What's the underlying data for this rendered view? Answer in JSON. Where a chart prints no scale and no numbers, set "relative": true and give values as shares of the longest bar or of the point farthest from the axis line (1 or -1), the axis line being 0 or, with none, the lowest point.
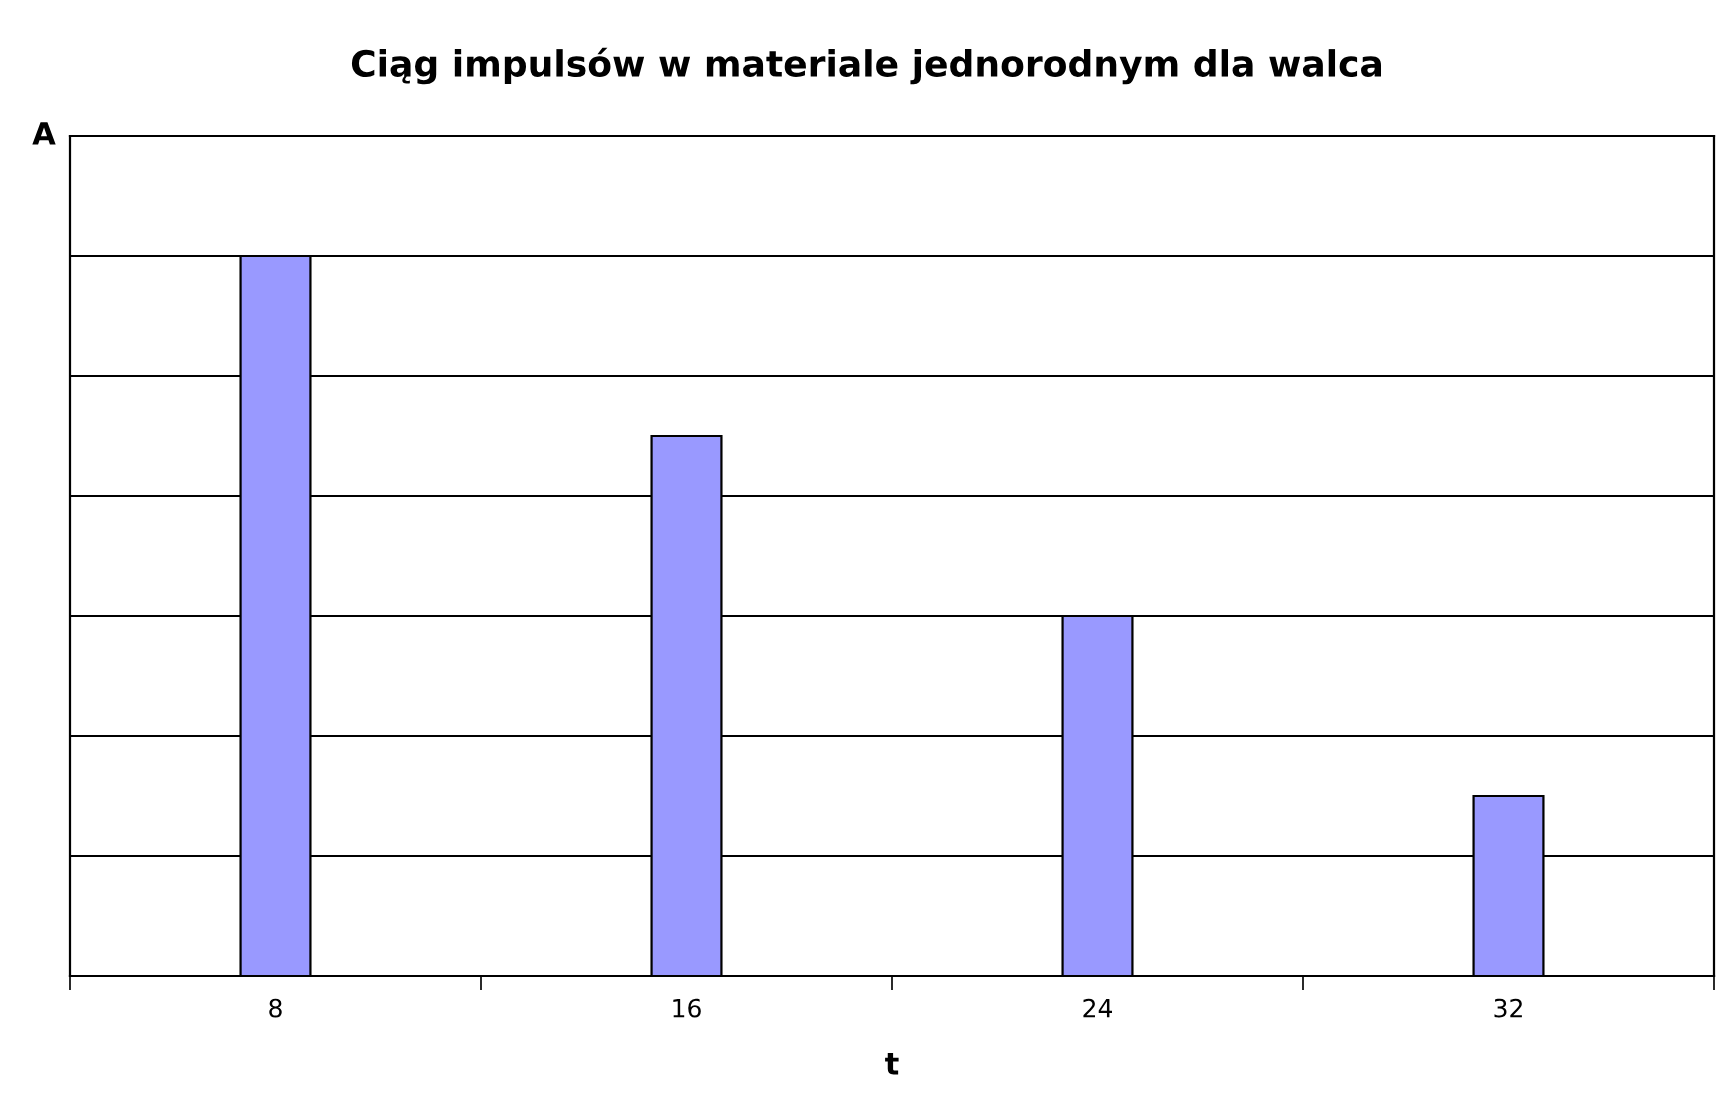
{
  "chart_data": {
    "type": "bar",
    "title": "Ciąg impulsów w materiale jednorodnym dla walca",
    "xlabel": "t",
    "ylabel": "A",
    "categories": [
      "8",
      "16",
      "24",
      "32"
    ],
    "values": [
      1,
      0.75,
      0.5,
      0.25
    ],
    "color": "#9999ff",
    "relative": true,
    "grid": "y",
    "legend": false
  }
}
